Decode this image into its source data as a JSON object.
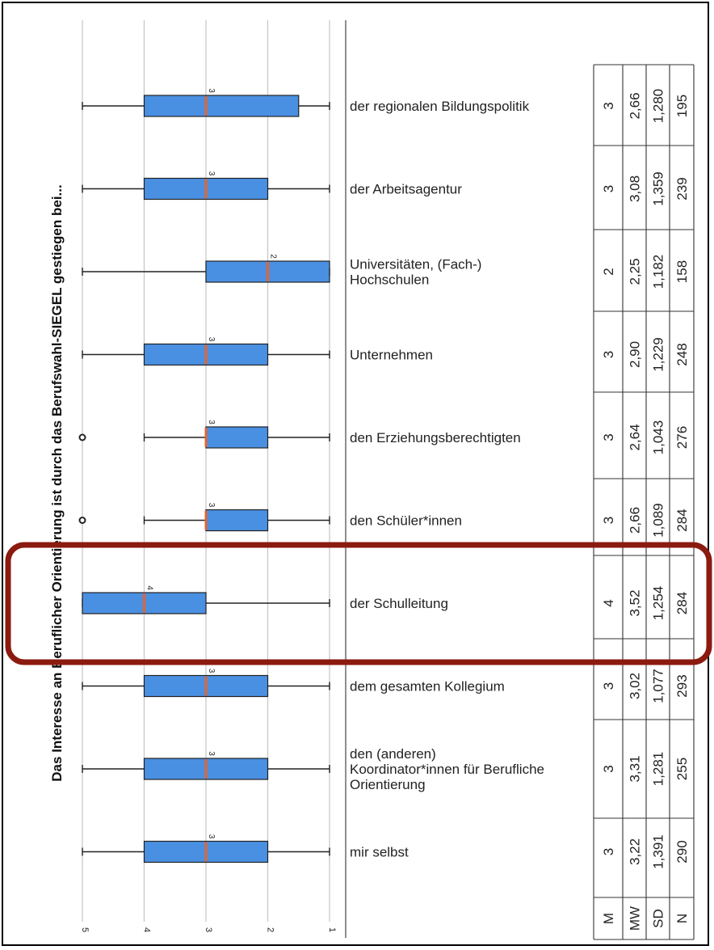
{
  "chart_data": {
    "type": "boxplot",
    "title": "Das Interesse an Beruflicher Orientierung ist durch das Berufswahl-SIEGEL gestiegen bei...",
    "x_ticks": [
      "5",
      "4",
      "3",
      "2",
      "1"
    ],
    "xlim": [
      5,
      1
    ],
    "grid": true,
    "box_color": "#4a90e2",
    "median_color": "#e8632b",
    "highlight_color": "#8b1a10",
    "stats_row_labels": [
      "M",
      "MW",
      "SD",
      "N"
    ],
    "categories": [
      {
        "label": "der regionalen Bildungspolitik",
        "whisker_low": 1,
        "q1": 1.5,
        "median": 3,
        "q3": 4,
        "whisker_high": 5,
        "outliers": [],
        "M": "3",
        "MW": "2,66",
        "SD": "1,280",
        "N": "195"
      },
      {
        "label": "der Arbeitsagentur",
        "whisker_low": 1,
        "q1": 2,
        "median": 3,
        "q3": 4,
        "whisker_high": 5,
        "outliers": [],
        "M": "3",
        "MW": "3,08",
        "SD": "1,359",
        "N": "239"
      },
      {
        "label": "Universitäten, (Fach-)\nHochschulen",
        "whisker_low": 1,
        "q1": 1,
        "median": 2,
        "q3": 3,
        "whisker_high": 5,
        "outliers": [],
        "M": "2",
        "MW": "2,25",
        "SD": "1,182",
        "N": "158"
      },
      {
        "label": "Unternehmen",
        "whisker_low": 1,
        "q1": 2,
        "median": 3,
        "q3": 4,
        "whisker_high": 5,
        "outliers": [],
        "M": "3",
        "MW": "2,90",
        "SD": "1,229",
        "N": "248"
      },
      {
        "label": "den Erziehungsberechtigten",
        "whisker_low": 1,
        "q1": 2,
        "median": 3,
        "q3": 3,
        "whisker_high": 4,
        "outliers": [
          5
        ],
        "M": "3",
        "MW": "2,64",
        "SD": "1,043",
        "N": "276"
      },
      {
        "label": "den Schüler*innen",
        "whisker_low": 1,
        "q1": 2,
        "median": 3,
        "q3": 3,
        "whisker_high": 4,
        "outliers": [
          5
        ],
        "M": "3",
        "MW": "2,66",
        "SD": "1,089",
        "N": "284"
      },
      {
        "label": "der Schulleitung",
        "whisker_low": 1,
        "q1": 3,
        "median": 4,
        "q3": 5,
        "whisker_high": 5,
        "outliers": [],
        "M": "4",
        "MW": "3,52",
        "SD": "1,254",
        "N": "284",
        "highlighted": true
      },
      {
        "label": "dem gesamten Kollegium",
        "whisker_low": 1,
        "q1": 2,
        "median": 3,
        "q3": 4,
        "whisker_high": 5,
        "outliers": [],
        "M": "3",
        "MW": "3,02",
        "SD": "1,077",
        "N": "293"
      },
      {
        "label": "den (anderen)\nKoordinator*innen für Berufliche\nOrientierung",
        "whisker_low": 1,
        "q1": 2,
        "median": 3,
        "q3": 4,
        "whisker_high": 5,
        "outliers": [],
        "M": "3",
        "MW": "3,31",
        "SD": "1,281",
        "N": "255"
      },
      {
        "label": "mir selbst",
        "whisker_low": 1,
        "q1": 2,
        "median": 3,
        "q3": 4,
        "whisker_high": 5,
        "outliers": [],
        "M": "3",
        "MW": "3,22",
        "SD": "1,391",
        "N": "290"
      }
    ]
  }
}
